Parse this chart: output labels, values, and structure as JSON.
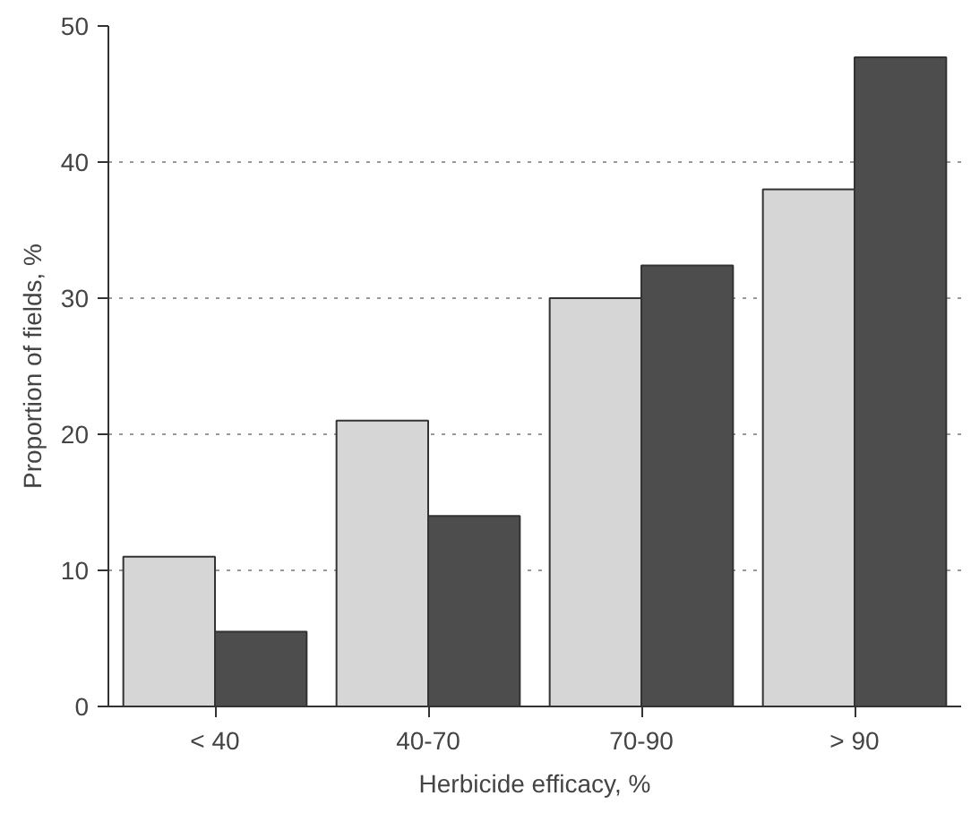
{
  "chart_data": {
    "type": "bar",
    "xlabel": "Herbicide efficacy, %",
    "ylabel": "Proportion of fields, %",
    "categories": [
      "< 40",
      "40-70",
      "70-90",
      "> 90"
    ],
    "series": [
      {
        "color": "#d6d6d6",
        "values": [
          11,
          21,
          30,
          38
        ]
      },
      {
        "color": "#4d4d4d",
        "values": [
          5.5,
          14,
          32.4,
          47.7
        ]
      }
    ],
    "ylim": [
      0,
      50
    ],
    "yticks": [
      0,
      10,
      20,
      30,
      40,
      50
    ],
    "grid": "y",
    "line_style": "dotted"
  }
}
